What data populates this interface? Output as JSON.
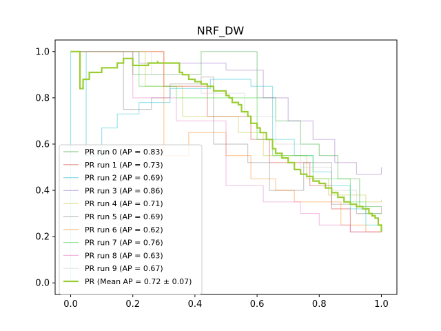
{
  "chart_data": {
    "type": "line",
    "title": "NRF_DW",
    "xlabel": "",
    "ylabel": "",
    "xlim": [
      -0.05,
      1.05
    ],
    "ylim": [
      -0.05,
      1.05
    ],
    "x_ticks": [
      "0.0",
      "0.2",
      "0.4",
      "0.6",
      "0.8",
      "1.0"
    ],
    "y_ticks": [
      "0.0",
      "0.2",
      "0.4",
      "0.6",
      "0.8",
      "1.0"
    ],
    "grid": false,
    "legend_position": "lower-left",
    "series": [
      {
        "name": "PR run 0 (AP = 0.83)",
        "color": "#2ca02c",
        "x": [
          0.0,
          0.2,
          0.2,
          0.42,
          0.42,
          0.6,
          0.6,
          0.66,
          0.66,
          0.74,
          0.74,
          0.8,
          0.8,
          0.86,
          0.86,
          0.93,
          0.93,
          1.0
        ],
        "y": [
          1.0,
          1.0,
          0.9,
          0.9,
          1.0,
          1.0,
          0.8,
          0.8,
          0.7,
          0.7,
          0.6,
          0.6,
          0.55,
          0.55,
          0.45,
          0.45,
          0.33,
          0.33
        ]
      },
      {
        "name": "PR run 1 (AP = 0.73)",
        "color": "#d62728",
        "x": [
          0.0,
          0.3,
          0.3,
          0.44,
          0.44,
          0.58,
          0.58,
          0.64,
          0.64,
          0.77,
          0.77,
          0.84,
          0.84,
          0.9,
          0.9,
          1.0
        ],
        "y": [
          1.0,
          1.0,
          0.85,
          0.85,
          0.72,
          0.72,
          0.62,
          0.62,
          0.52,
          0.52,
          0.42,
          0.42,
          0.32,
          0.32,
          0.22,
          0.22
        ]
      },
      {
        "name": "PR run 2 (AP = 0.69)",
        "color": "#17becf",
        "x": [
          0.0,
          0.0,
          0.05,
          0.1,
          0.15,
          0.22,
          0.32,
          0.45,
          0.58,
          0.58,
          0.65,
          0.65,
          0.72,
          0.72,
          0.78,
          0.78,
          0.84,
          0.84,
          0.9,
          0.9,
          0.95,
          0.95,
          1.0
        ],
        "y": [
          0.0,
          1.0,
          0.55,
          0.67,
          0.73,
          0.78,
          0.84,
          0.88,
          0.88,
          0.85,
          0.85,
          0.62,
          0.62,
          0.55,
          0.55,
          0.48,
          0.48,
          0.42,
          0.42,
          0.32,
          0.32,
          0.25,
          0.25
        ]
      },
      {
        "name": "PR run 3 (AP = 0.86)",
        "color": "#9467bd",
        "x": [
          0.0,
          0.22,
          0.22,
          0.5,
          0.5,
          0.62,
          0.62,
          0.7,
          0.7,
          0.78,
          0.78,
          0.85,
          0.85,
          0.92,
          0.92,
          1.0
        ],
        "y": [
          1.0,
          1.0,
          0.95,
          0.95,
          0.92,
          0.92,
          0.8,
          0.8,
          0.7,
          0.7,
          0.62,
          0.62,
          0.52,
          0.52,
          0.47,
          0.5
        ]
      },
      {
        "name": "PR run 4 (AP = 0.71)",
        "color": "#bcbd22",
        "x": [
          0.0,
          0.24,
          0.24,
          0.36,
          0.36,
          0.54,
          0.54,
          0.62,
          0.62,
          0.76,
          0.76,
          0.83,
          0.83,
          0.95,
          0.95,
          1.0
        ],
        "y": [
          1.0,
          1.0,
          0.85,
          0.85,
          0.72,
          0.72,
          0.65,
          0.65,
          0.55,
          0.55,
          0.45,
          0.45,
          0.38,
          0.38,
          0.35,
          0.36
        ]
      },
      {
        "name": "PR run 5 (AP = 0.69)",
        "color": "#7f7f7f",
        "x": [
          0.0,
          0.17,
          0.17,
          0.26,
          0.32,
          0.42,
          0.46,
          0.46,
          0.57,
          0.57,
          0.64,
          0.64,
          0.75,
          0.75,
          0.84,
          0.84,
          0.92,
          0.92,
          1.0
        ],
        "y": [
          1.0,
          1.0,
          0.75,
          0.8,
          0.86,
          0.89,
          0.89,
          0.6,
          0.6,
          0.52,
          0.52,
          0.4,
          0.4,
          0.52,
          0.52,
          0.34,
          0.34,
          0.3,
          0.33
        ]
      },
      {
        "name": "PR run 6 (AP = 0.62)",
        "color": "#ff7f0e",
        "x": [
          0.0,
          0.3,
          0.3,
          0.38,
          0.38,
          0.5,
          0.5,
          0.58,
          0.58,
          0.66,
          0.66,
          0.72,
          0.72,
          0.87,
          0.87,
          0.95,
          0.95,
          1.0
        ],
        "y": [
          1.0,
          1.0,
          0.55,
          0.55,
          0.65,
          0.65,
          0.55,
          0.55,
          0.45,
          0.45,
          0.4,
          0.4,
          0.35,
          0.35,
          0.25,
          0.25,
          0.22,
          0.22
        ]
      },
      {
        "name": "PR run 7 (AP = 0.76)",
        "color": "#32cd32",
        "x": [
          0.0,
          0.22,
          0.22,
          0.34,
          0.34,
          0.6,
          0.6,
          0.65,
          0.65,
          0.78,
          0.78,
          0.9,
          0.9,
          0.95,
          0.95,
          1.0
        ],
        "y": [
          1.0,
          1.0,
          0.85,
          0.85,
          0.8,
          0.8,
          0.62,
          0.62,
          0.55,
          0.55,
          0.45,
          0.45,
          0.35,
          0.35,
          0.3,
          0.3
        ]
      },
      {
        "name": "PR run 8 (AP = 0.63)",
        "color": "#e377c2",
        "x": [
          0.0,
          0.2,
          0.2,
          0.34,
          0.34,
          0.5,
          0.5,
          0.62,
          0.62,
          0.74,
          0.74,
          0.8,
          0.8,
          0.9,
          0.9,
          1.0
        ],
        "y": [
          1.0,
          1.0,
          0.8,
          0.8,
          0.7,
          0.7,
          0.42,
          0.42,
          0.35,
          0.35,
          0.3,
          0.3,
          0.25,
          0.25,
          0.22,
          0.22
        ]
      },
      {
        "name": "PR run 9 (AP = 0.67)",
        "color": "#c8c8c8",
        "x": [
          0.0,
          0.26,
          0.26,
          0.42,
          0.42,
          0.56,
          0.56,
          0.66,
          0.66,
          0.74,
          0.74,
          0.84,
          0.84,
          0.92,
          0.92,
          1.0
        ],
        "y": [
          1.0,
          1.0,
          0.9,
          0.9,
          0.82,
          0.82,
          0.72,
          0.72,
          0.6,
          0.6,
          0.5,
          0.5,
          0.4,
          0.4,
          0.3,
          0.3
        ]
      },
      {
        "name": "PR (Mean AP = 0.72 ± 0.07)",
        "color": "#9acd32",
        "bold": true,
        "x": [
          0.0,
          0.03,
          0.03,
          0.04,
          0.06,
          0.1,
          0.15,
          0.17,
          0.17,
          0.2,
          0.25,
          0.28,
          0.28,
          0.35,
          0.35,
          0.36,
          0.38,
          0.4,
          0.42,
          0.44,
          0.46,
          0.48,
          0.5,
          0.51,
          0.52,
          0.54,
          0.55,
          0.57,
          0.58,
          0.6,
          0.61,
          0.63,
          0.65,
          0.66,
          0.68,
          0.7,
          0.72,
          0.74,
          0.76,
          0.78,
          0.8,
          0.82,
          0.84,
          0.86,
          0.88,
          0.9,
          0.92,
          0.94,
          0.96,
          0.97,
          0.98,
          0.99,
          1.0
        ],
        "y": [
          1.0,
          1.0,
          0.84,
          0.88,
          0.91,
          0.93,
          0.95,
          0.96,
          0.97,
          0.94,
          0.95,
          0.96,
          0.95,
          0.95,
          0.91,
          0.9,
          0.88,
          0.87,
          0.86,
          0.85,
          0.83,
          0.83,
          0.81,
          0.8,
          0.78,
          0.77,
          0.74,
          0.72,
          0.69,
          0.67,
          0.65,
          0.62,
          0.58,
          0.56,
          0.54,
          0.52,
          0.49,
          0.47,
          0.46,
          0.44,
          0.43,
          0.41,
          0.39,
          0.37,
          0.35,
          0.34,
          0.33,
          0.32,
          0.3,
          0.29,
          0.28,
          0.25,
          0.22
        ]
      }
    ]
  }
}
